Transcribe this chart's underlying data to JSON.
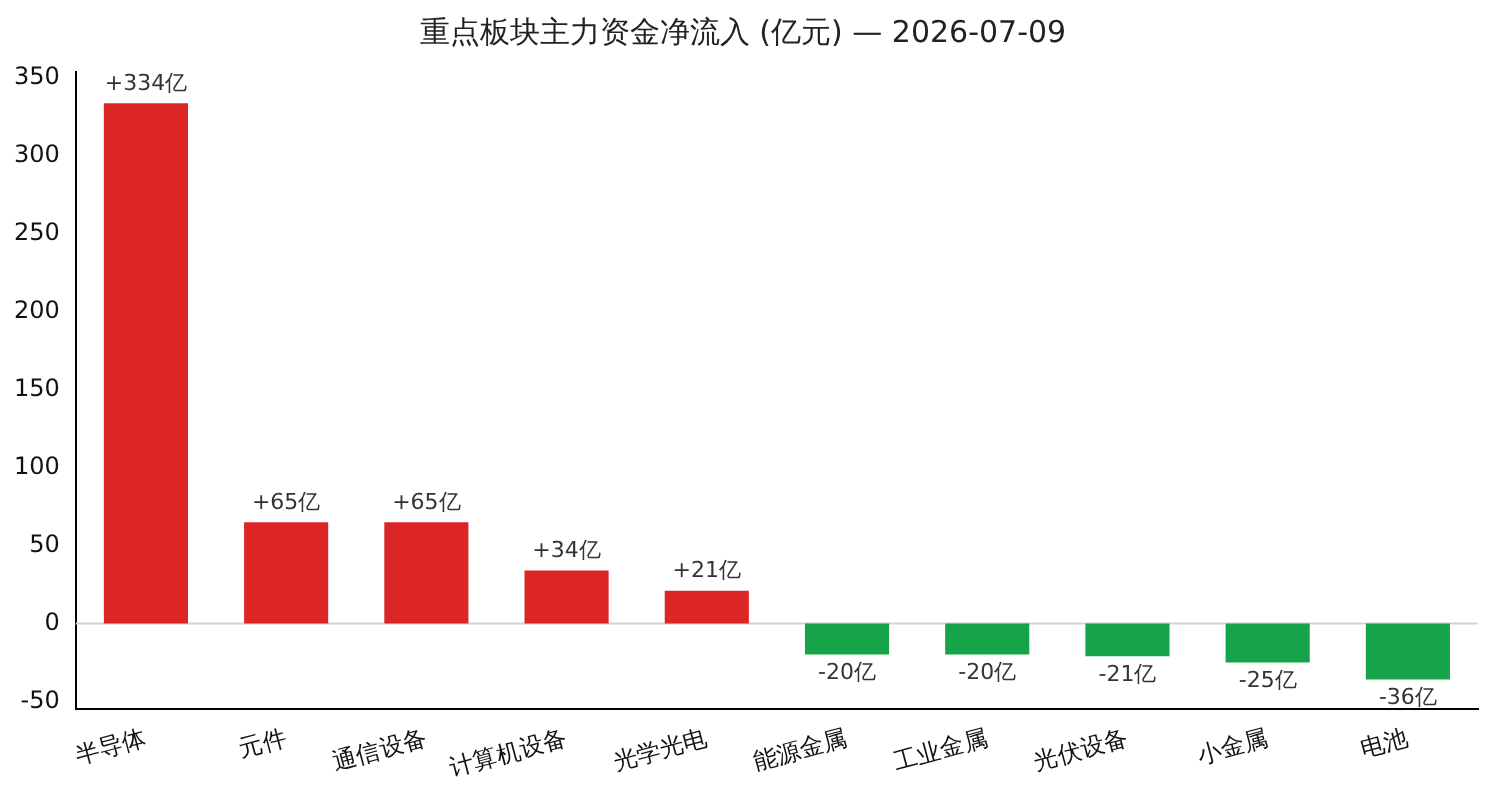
{
  "chart_data": {
    "type": "bar",
    "title": "重点板块主力资金净流入 (亿元) — 2026-07-09",
    "categories": [
      "半导体",
      "元件",
      "通信设备",
      "计算机设备",
      "光学光电",
      "能源金属",
      "工业金属",
      "光伏设备",
      "小金属",
      "电池"
    ],
    "values": [
      334,
      65,
      65,
      34,
      21,
      -20,
      -20,
      -21,
      -25,
      -36
    ],
    "colors": [
      "#dc2626",
      "#dc2626",
      "#dc2626",
      "#dc2626",
      "#dc2626",
      "#16a34a",
      "#16a34a",
      "#16a34a",
      "#16a34a",
      "#16a34a"
    ],
    "value_labels": [
      "+334亿",
      "+65亿",
      "+65亿",
      "+34亿",
      "+21亿",
      "-20亿",
      "-20亿",
      "-21亿",
      "-25亿",
      "-36亿"
    ],
    "ylim": [
      -55,
      354
    ],
    "yticks": [
      -50,
      0,
      50,
      100,
      150,
      200,
      250,
      300,
      350
    ],
    "ref_lines": [
      {
        "axis": "y",
        "value": 0,
        "color": "#cbd5e1"
      }
    ],
    "grid": false,
    "legend": false
  }
}
